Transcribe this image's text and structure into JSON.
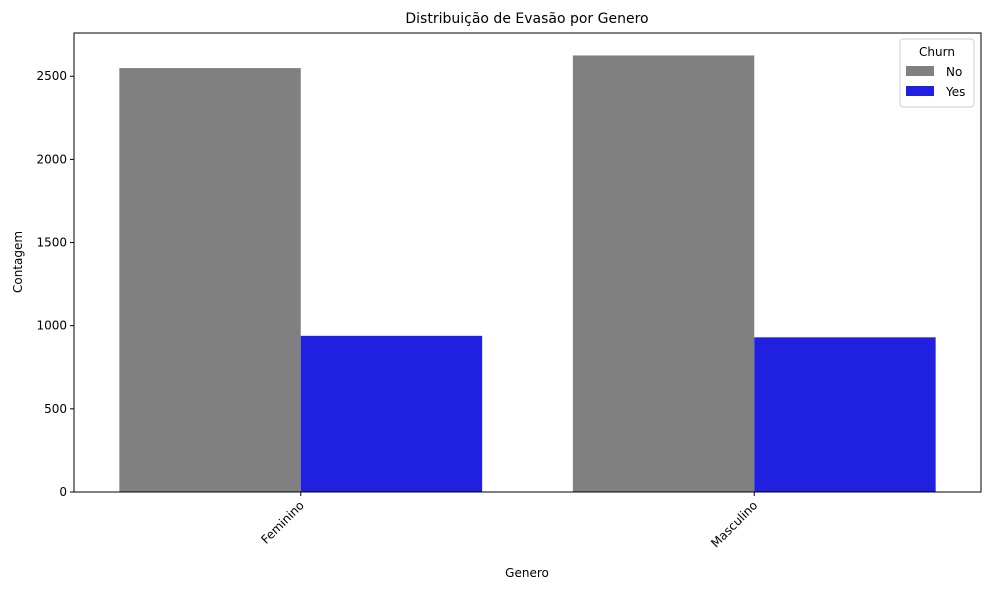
{
  "chart_data": {
    "type": "bar",
    "title": "Distribuição de Evasão por Genero",
    "xlabel": "Genero",
    "ylabel": "Contagem",
    "categories": [
      "Feminino",
      "Masculino"
    ],
    "series": [
      {
        "name": "No",
        "color": "#808080",
        "values": [
          2549,
          2625
        ]
      },
      {
        "name": "Yes",
        "color": "#2020e0",
        "values": [
          939,
          930
        ]
      }
    ],
    "ylim": [
      0,
      2760
    ],
    "yticks": [
      0,
      500,
      1000,
      1500,
      2000,
      2500
    ],
    "legend": {
      "title": "Churn",
      "placement": "top-right"
    },
    "grid": false
  }
}
